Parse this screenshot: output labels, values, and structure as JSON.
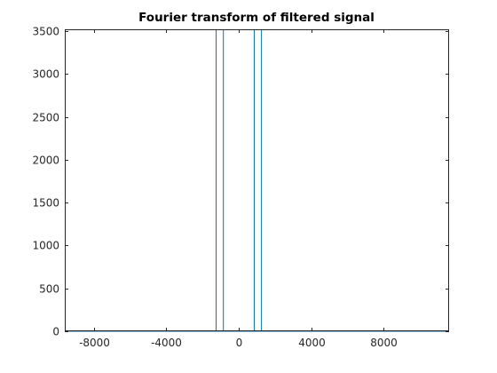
{
  "chart_data": {
    "type": "line",
    "title": "Fourier transform of filtered signal",
    "xlabel": "",
    "ylabel": "",
    "xlim": [
      -9600,
      11600
    ],
    "ylim": [
      0,
      3520
    ],
    "xticks": [
      -8000,
      -4000,
      0,
      4000,
      8000
    ],
    "xtick_labels": [
      "-8000",
      "-4000",
      "0",
      "4000",
      "8000"
    ],
    "yticks": [
      0,
      500,
      1000,
      1500,
      2000,
      2500,
      3000,
      3500
    ],
    "ytick_labels": [
      "0",
      "500",
      "1000",
      "1500",
      "2000",
      "2500",
      "3000",
      "3500"
    ],
    "grid": false,
    "legend": "none",
    "series": [
      {
        "color": "#0072bd",
        "x": [
          -9600,
          -1250,
          -1250,
          -1250,
          -850,
          -850,
          -850,
          850,
          850,
          850,
          1250,
          1250,
          1250,
          11600
        ],
        "y": [
          0,
          0,
          3520,
          0,
          0,
          3520,
          0,
          0,
          3520,
          0,
          0,
          3520,
          0,
          0
        ]
      }
    ]
  }
}
